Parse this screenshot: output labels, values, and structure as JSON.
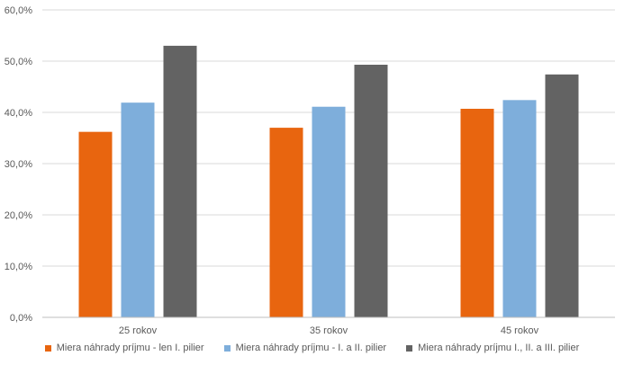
{
  "chart_data": {
    "type": "bar",
    "categories": [
      "25 rokov",
      "35 rokov",
      "45 rokov"
    ],
    "series": [
      {
        "name": "Miera náhrady príjmu - len I. pilier",
        "values": [
          36.2,
          37.0,
          40.7
        ],
        "color": "#E8650F"
      },
      {
        "name": "Miera náhrady príjmu - I. a II. pilier",
        "values": [
          41.9,
          41.1,
          42.4
        ],
        "color": "#7EAEDB"
      },
      {
        "name": "Miera náhrady príjmu I., II. a III. pilier",
        "values": [
          53.0,
          49.3,
          47.4
        ],
        "color": "#636363"
      }
    ],
    "y_ticks": [
      "0,0%",
      "10,0%",
      "20,0%",
      "30,0%",
      "40,0%",
      "50,0%",
      "60,0%"
    ],
    "ylim": [
      0,
      60
    ],
    "grid": true,
    "legend_position": "bottom",
    "title": "",
    "xlabel": "",
    "ylabel": ""
  }
}
